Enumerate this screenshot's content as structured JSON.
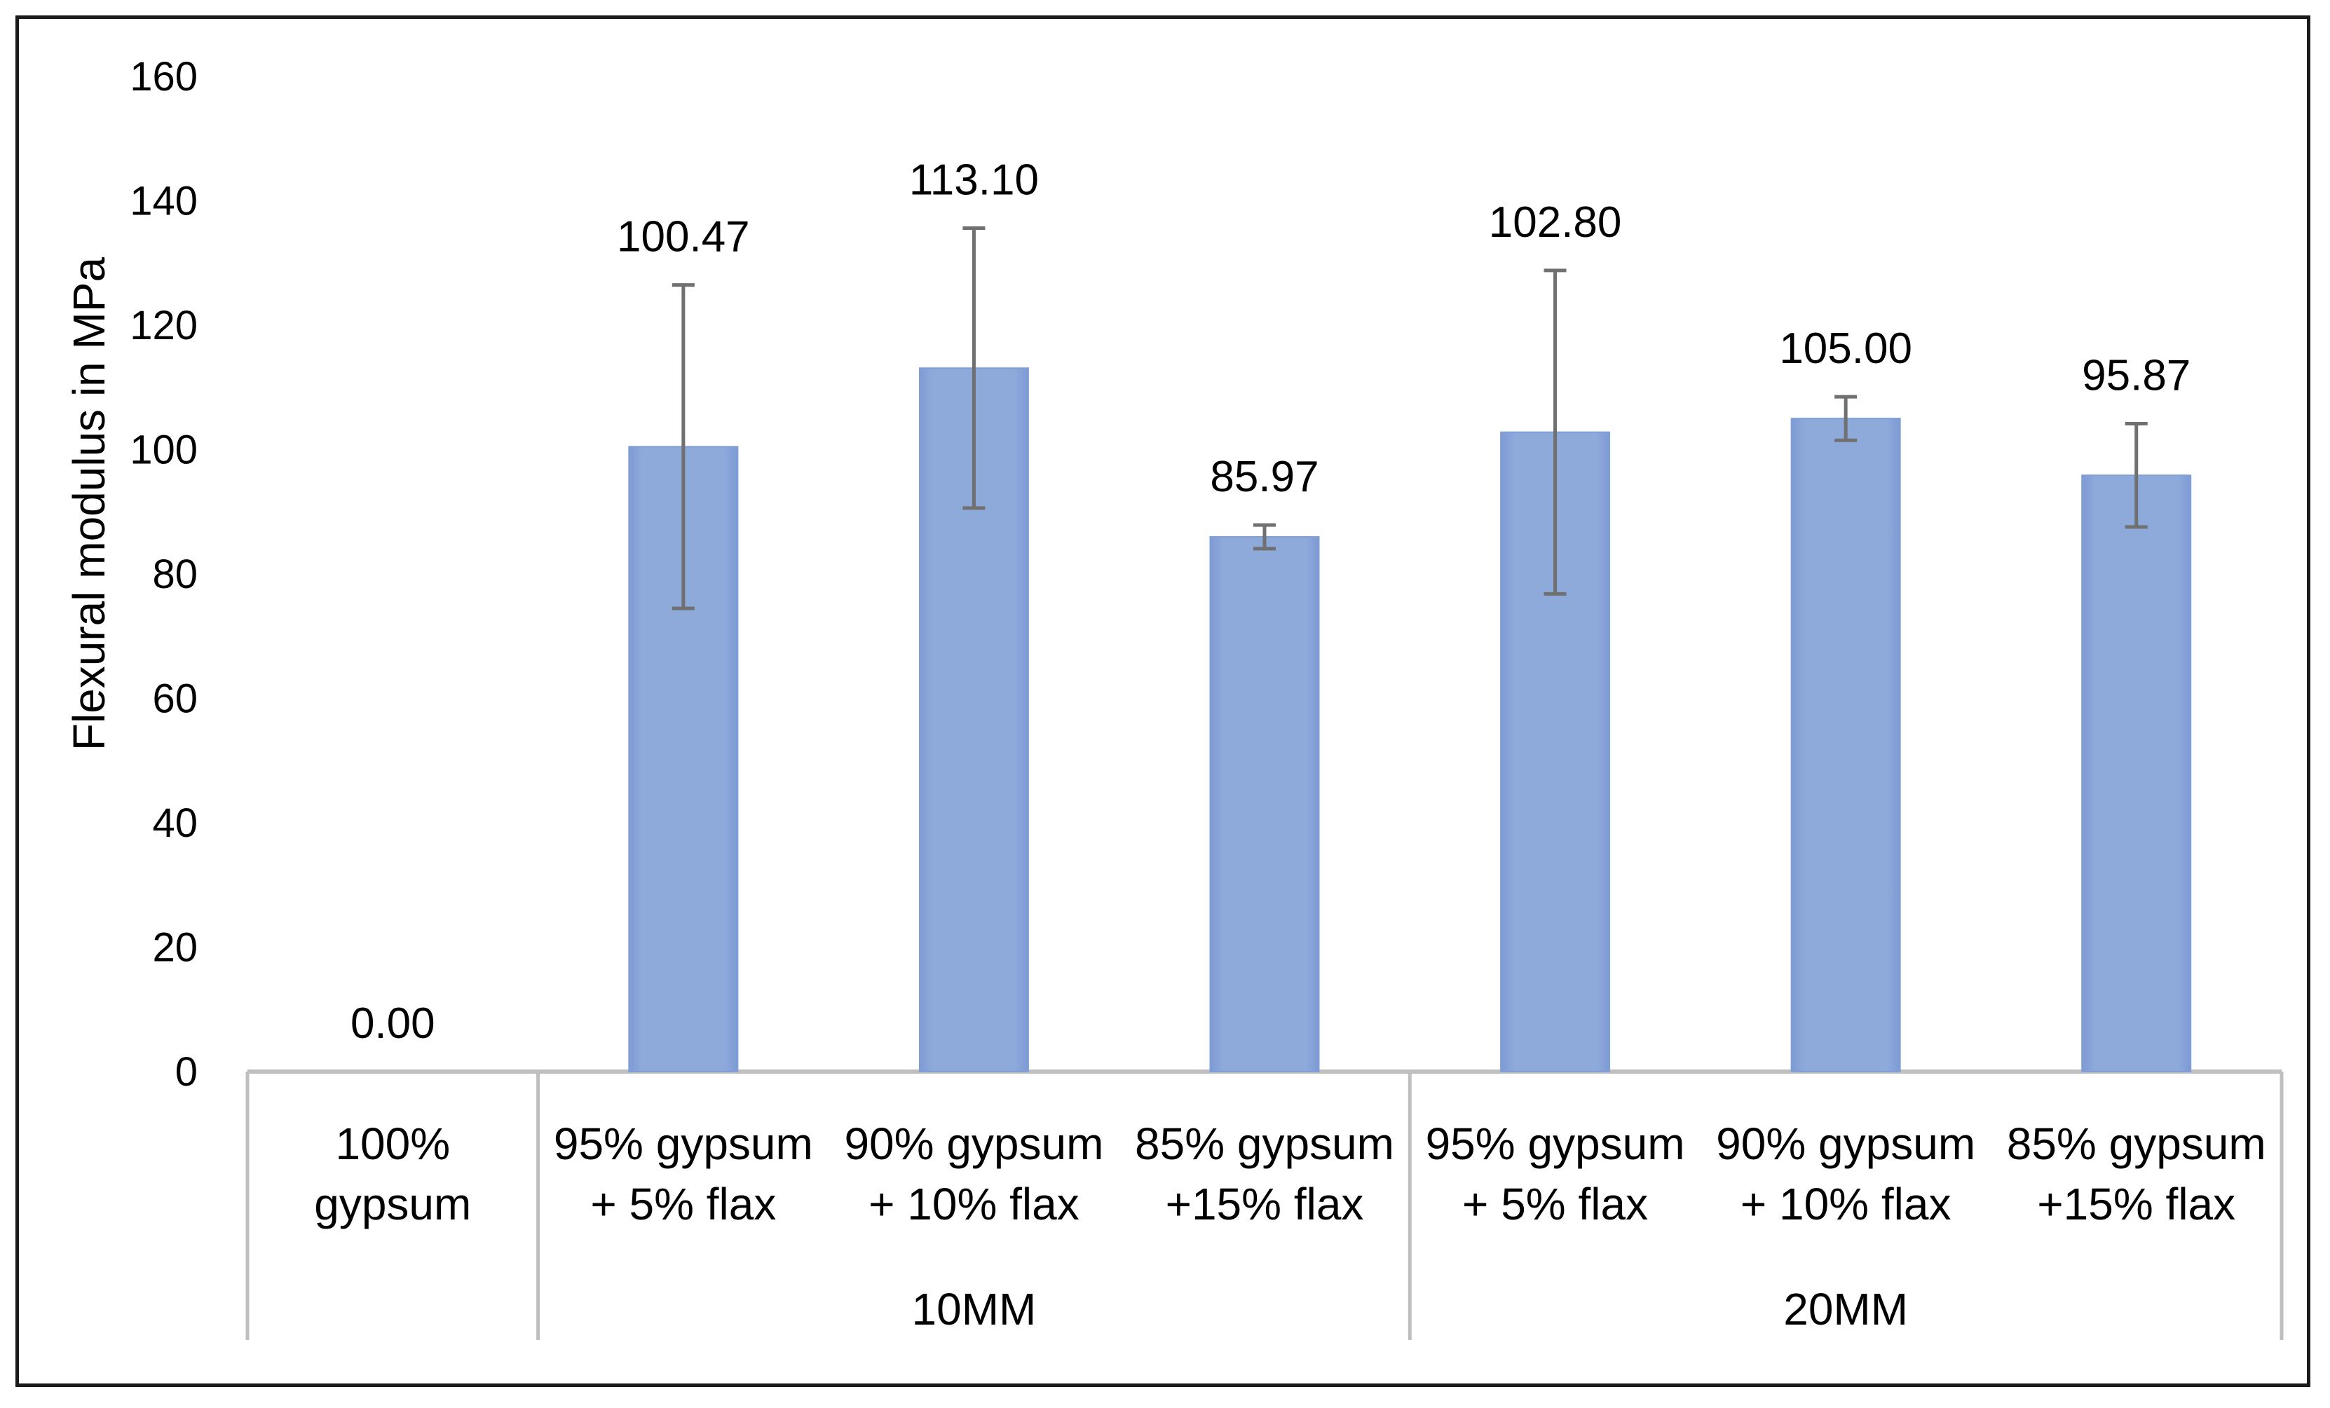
{
  "chart_data": {
    "type": "bar",
    "title": "",
    "xlabel": "",
    "ylabel": "Flexural modulus in MPa",
    "ylim": [
      0,
      160
    ],
    "yticks": [
      0,
      20,
      40,
      60,
      80,
      100,
      120,
      140,
      160
    ],
    "grid": false,
    "legend": "none",
    "bar_color": "#8eaadb",
    "bar_edge_color": "#7f9fd6",
    "error_bar_color": "#707070",
    "axis_color": "#bfbfbf",
    "categories": [
      {
        "line1": "100%",
        "line2": "gypsum",
        "group": ""
      },
      {
        "line1": "95% gypsum",
        "line2": "+ 5% flax",
        "group": "10MM"
      },
      {
        "line1": "90% gypsum",
        "line2": "+ 10% flax",
        "group": "10MM"
      },
      {
        "line1": "85% gypsum",
        "line2": "+15% flax",
        "group": "10MM"
      },
      {
        "line1": "95% gypsum",
        "line2": "+ 5% flax",
        "group": "20MM"
      },
      {
        "line1": "90% gypsum",
        "line2": "+ 10% flax",
        "group": "20MM"
      },
      {
        "line1": "85% gypsum",
        "line2": "+15% flax",
        "group": "20MM"
      }
    ],
    "groups": [
      "10MM",
      "20MM"
    ],
    "values": [
      0.0,
      100.47,
      113.1,
      85.97,
      102.8,
      105.0,
      95.87
    ],
    "value_labels": [
      "0.00",
      "100.47",
      "113.10",
      "85.97",
      "102.80",
      "105.00",
      "95.87"
    ],
    "error": [
      0,
      26,
      22.5,
      1.9,
      26,
      3.5,
      8.3
    ]
  }
}
